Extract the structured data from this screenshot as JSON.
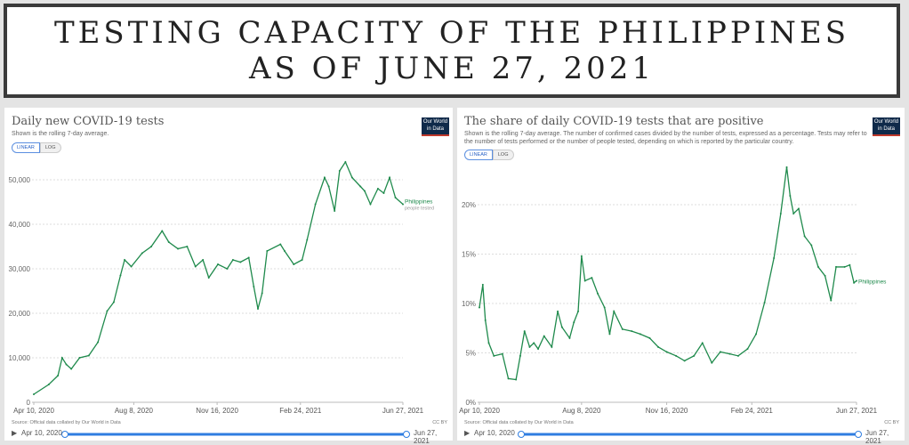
{
  "header": {
    "line1": "TESTING CAPACITY OF THE PHILIPPINES",
    "line2": "AS OF JUNE 27, 2021"
  },
  "colors": {
    "line": "#1f8a4c",
    "accent": "#2f7de1",
    "logo_bg": "#0f2a4a"
  },
  "chart_data": [
    {
      "type": "line",
      "title": "Daily new COVID-19 tests",
      "subtitle": "Shown is the rolling 7-day average.",
      "logo": "Our World in Data",
      "scale_toggle": [
        "LINEAR",
        "LOG"
      ],
      "selected_scale": "LINEAR",
      "xlim": [
        "2020-04-10",
        "2021-06-27"
      ],
      "x_ticks": [
        "Apr 10, 2020",
        "Aug 8, 2020",
        "Nov 16, 2020",
        "Feb 24, 2021",
        "Jun 27, 2021"
      ],
      "ylim": [
        0,
        55000
      ],
      "y_ticks": [
        "0",
        "10,000",
        "20,000",
        "30,000",
        "40,000",
        "50,000"
      ],
      "y_tick_values": [
        0,
        10000,
        20000,
        30000,
        40000,
        50000
      ],
      "grid": true,
      "source": "Source: Official data collated by Our World in Data",
      "license": "CC BY",
      "timeline": {
        "start": "Apr 10, 2020",
        "end": "Jun 27, 2021"
      },
      "series": [
        {
          "name": "Philippines",
          "note": "people tested",
          "points": [
            [
              "2020-04-10",
              1800
            ],
            [
              "2020-04-28",
              4000
            ],
            [
              "2020-05-09",
              6000
            ],
            [
              "2020-05-14",
              10000
            ],
            [
              "2020-05-19",
              8500
            ],
            [
              "2020-05-25",
              7500
            ],
            [
              "2020-06-04",
              10000
            ],
            [
              "2020-06-15",
              10500
            ],
            [
              "2020-06-26",
              13500
            ],
            [
              "2020-07-07",
              20500
            ],
            [
              "2020-07-15",
              22500
            ],
            [
              "2020-07-23",
              28500
            ],
            [
              "2020-07-28",
              32000
            ],
            [
              "2020-08-05",
              30500
            ],
            [
              "2020-08-18",
              33500
            ],
            [
              "2020-08-29",
              35000
            ],
            [
              "2020-09-11",
              38500
            ],
            [
              "2020-09-19",
              36000
            ],
            [
              "2020-09-30",
              34500
            ],
            [
              "2020-10-11",
              35000
            ],
            [
              "2020-10-21",
              30500
            ],
            [
              "2020-10-30",
              32000
            ],
            [
              "2020-11-06",
              28000
            ],
            [
              "2020-11-17",
              31000
            ],
            [
              "2020-11-28",
              30000
            ],
            [
              "2020-12-05",
              32000
            ],
            [
              "2020-12-14",
              31500
            ],
            [
              "2020-12-24",
              32500
            ],
            [
              "2020-12-30",
              26000
            ],
            [
              "2021-01-04",
              21000
            ],
            [
              "2021-01-09",
              24500
            ],
            [
              "2021-01-15",
              34000
            ],
            [
              "2021-01-31",
              35500
            ],
            [
              "2021-02-05",
              34000
            ],
            [
              "2021-02-16",
              31000
            ],
            [
              "2021-02-26",
              32000
            ],
            [
              "2021-03-04",
              36500
            ],
            [
              "2021-03-14",
              44500
            ],
            [
              "2021-03-25",
              50500
            ],
            [
              "2021-03-30",
              48500
            ],
            [
              "2021-04-06",
              43000
            ],
            [
              "2021-04-12",
              52000
            ],
            [
              "2021-04-19",
              54000
            ],
            [
              "2021-04-27",
              50500
            ],
            [
              "2021-05-07",
              48500
            ],
            [
              "2021-05-12",
              47500
            ],
            [
              "2021-05-19",
              44500
            ],
            [
              "2021-05-28",
              48000
            ],
            [
              "2021-06-04",
              47000
            ],
            [
              "2021-06-11",
              50500
            ],
            [
              "2021-06-18",
              46000
            ],
            [
              "2021-06-27",
              44500
            ]
          ]
        }
      ]
    },
    {
      "type": "line",
      "title": "The share of daily COVID-19 tests that are positive",
      "subtitle": "Shown is the rolling 7-day average. The number of confirmed cases divided by the number of tests, expressed as a percentage. Tests may refer to the number of tests performed or the number of people tested, depending on which is reported by the particular country.",
      "logo": "Our World in Data",
      "scale_toggle": [
        "LINEAR",
        "LOG"
      ],
      "selected_scale": "LINEAR",
      "xlim": [
        "2020-04-10",
        "2021-06-27"
      ],
      "x_ticks": [
        "Apr 10, 2020",
        "Aug 8, 2020",
        "Nov 16, 2020",
        "Feb 24, 2021",
        "Jun 27, 2021"
      ],
      "ylim": [
        0,
        25
      ],
      "y_ticks": [
        "0%",
        "5%",
        "10%",
        "15%",
        "20%"
      ],
      "y_tick_values": [
        0,
        5,
        10,
        15,
        20
      ],
      "grid": true,
      "source": "Source: Official data collated by Our World in Data",
      "license": "CC BY",
      "timeline": {
        "start": "Apr 10, 2020",
        "end": "Jun 27, 2021"
      },
      "series": [
        {
          "name": "Philippines",
          "points": [
            [
              "2020-04-10",
              9.6
            ],
            [
              "2020-04-14",
              11.9
            ],
            [
              "2020-04-17",
              8.3
            ],
            [
              "2020-04-21",
              6
            ],
            [
              "2020-04-27",
              4.7
            ],
            [
              "2020-05-07",
              4.9
            ],
            [
              "2020-05-14",
              2.4
            ],
            [
              "2020-05-23",
              2.3
            ],
            [
              "2020-05-28",
              4.7
            ],
            [
              "2020-06-02",
              7.2
            ],
            [
              "2020-06-08",
              5.6
            ],
            [
              "2020-06-13",
              6
            ],
            [
              "2020-06-18",
              5.4
            ],
            [
              "2020-06-25",
              6.7
            ],
            [
              "2020-07-04",
              5.6
            ],
            [
              "2020-07-11",
              9.2
            ],
            [
              "2020-07-16",
              7.6
            ],
            [
              "2020-07-25",
              6.5
            ],
            [
              "2020-07-30",
              8.1
            ],
            [
              "2020-08-04",
              9.2
            ],
            [
              "2020-08-08",
              14.8
            ],
            [
              "2020-08-12",
              12.3
            ],
            [
              "2020-08-20",
              12.6
            ],
            [
              "2020-08-27",
              11
            ],
            [
              "2020-09-04",
              9.6
            ],
            [
              "2020-09-10",
              6.9
            ],
            [
              "2020-09-15",
              9.2
            ],
            [
              "2020-09-25",
              7.4
            ],
            [
              "2020-10-06",
              7.2
            ],
            [
              "2020-10-16",
              6.9
            ],
            [
              "2020-10-27",
              6.5
            ],
            [
              "2020-11-06",
              5.6
            ],
            [
              "2020-11-16",
              5.1
            ],
            [
              "2020-11-27",
              4.7
            ],
            [
              "2020-12-07",
              4.2
            ],
            [
              "2020-12-18",
              4.7
            ],
            [
              "2020-12-28",
              6
            ],
            [
              "2021-01-08",
              4
            ],
            [
              "2021-01-18",
              5.1
            ],
            [
              "2021-01-29",
              4.9
            ],
            [
              "2021-02-08",
              4.7
            ],
            [
              "2021-02-19",
              5.4
            ],
            [
              "2021-03-01",
              6.9
            ],
            [
              "2021-03-11",
              10.1
            ],
            [
              "2021-03-22",
              14.6
            ],
            [
              "2021-03-30",
              19.1
            ],
            [
              "2021-04-06",
              23.8
            ],
            [
              "2021-04-10",
              20.9
            ],
            [
              "2021-04-14",
              19.1
            ],
            [
              "2021-04-20",
              19.6
            ],
            [
              "2021-04-27",
              16.8
            ],
            [
              "2021-05-05",
              15.9
            ],
            [
              "2021-05-13",
              13.7
            ],
            [
              "2021-05-21",
              12.8
            ],
            [
              "2021-05-28",
              10.3
            ],
            [
              "2021-06-03",
              13.7
            ],
            [
              "2021-06-13",
              13.7
            ],
            [
              "2021-06-19",
              13.9
            ],
            [
              "2021-06-24",
              12.1
            ],
            [
              "2021-06-27",
              12.3
            ]
          ]
        }
      ]
    }
  ]
}
